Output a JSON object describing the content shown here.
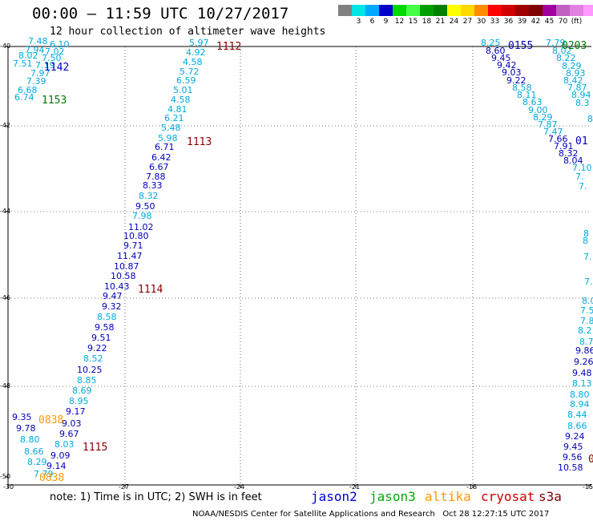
{
  "title": "00:00 – 11:59 UTC 10/27/2017",
  "subtitle": "12 hour collection of altimeter wave heights",
  "colorbar": {
    "colors": [
      "#808080",
      "#00e5e5",
      "#00aaff",
      "#0000cc",
      "#00d800",
      "#44ff44",
      "#00a000",
      "#008000",
      "#ffff00",
      "#ffd800",
      "#ff8c00",
      "#ff0000",
      "#d00000",
      "#a00000",
      "#800000",
      "#a000a0",
      "#c060c0",
      "#e080e0",
      "#ff99ff",
      "#000000"
    ],
    "labels": [
      "",
      "3",
      "6",
      "9",
      "12",
      "15",
      "18",
      "21",
      "24",
      "27",
      "30",
      "33",
      "36",
      "39",
      "42",
      "45",
      "70",
      "(ft)"
    ]
  },
  "axes": {
    "lat_ticks": [
      "-40",
      "-42",
      "-44",
      "-46",
      "-48",
      "-50"
    ],
    "lon_ticks": [
      "-30",
      "-27",
      "-24",
      "-21",
      "-18",
      "-15"
    ]
  },
  "track_colors": {
    "cyan": "#00aadd",
    "blue": "#0000bb",
    "green": "#007700",
    "orange": "#ff9900",
    "darkred": "#8b0000"
  },
  "observations": [
    {
      "v": "7.48",
      "c": "cyan"
    },
    {
      "v": "6.10",
      "c": "cyan"
    },
    {
      "v": "7.94",
      "c": "cyan"
    },
    {
      "v": "7.02",
      "c": "cyan"
    },
    {
      "v": "8.02",
      "c": "cyan"
    },
    {
      "v": "7.50",
      "c": "cyan"
    },
    {
      "v": "7.51",
      "c": "cyan"
    },
    {
      "v": "7.19",
      "c": "cyan"
    },
    {
      "v": "7.97",
      "c": "cyan"
    },
    {
      "v": "7.39",
      "c": "cyan"
    },
    {
      "v": "6.68",
      "c": "cyan"
    },
    {
      "v": "6.74",
      "c": "cyan"
    },
    {
      "v": "5.97",
      "c": "cyan"
    },
    {
      "v": "4.92",
      "c": "cyan"
    },
    {
      "v": "4.58",
      "c": "cyan"
    },
    {
      "v": "5.72",
      "c": "cyan"
    },
    {
      "v": "6.59",
      "c": "cyan"
    },
    {
      "v": "5.01",
      "c": "cyan"
    },
    {
      "v": "4.58",
      "c": "cyan"
    },
    {
      "v": "4.81",
      "c": "cyan"
    },
    {
      "v": "6.21",
      "c": "cyan"
    },
    {
      "v": "5.48",
      "c": "cyan"
    },
    {
      "v": "5.98",
      "c": "cyan"
    },
    {
      "v": "6.71",
      "c": "blue"
    },
    {
      "v": "6.42",
      "c": "blue"
    },
    {
      "v": "6.67",
      "c": "blue"
    },
    {
      "v": "7.88",
      "c": "blue"
    },
    {
      "v": "8.33",
      "c": "blue"
    },
    {
      "v": "8.32",
      "c": "cyan"
    },
    {
      "v": "9.50",
      "c": "blue"
    },
    {
      "v": "7.98",
      "c": "cyan"
    },
    {
      "v": "11.02",
      "c": "blue"
    },
    {
      "v": "10.80",
      "c": "blue"
    },
    {
      "v": "9.71",
      "c": "blue"
    },
    {
      "v": "11.47",
      "c": "blue"
    },
    {
      "v": "10.87",
      "c": "blue"
    },
    {
      "v": "10.58",
      "c": "blue"
    },
    {
      "v": "10.43",
      "c": "blue"
    },
    {
      "v": "9.47",
      "c": "blue"
    },
    {
      "v": "9.32",
      "c": "blue"
    },
    {
      "v": "8.58",
      "c": "cyan"
    },
    {
      "v": "9.58",
      "c": "blue"
    },
    {
      "v": "9.51",
      "c": "blue"
    },
    {
      "v": "9.22",
      "c": "blue"
    },
    {
      "v": "8.52",
      "c": "cyan"
    },
    {
      "v": "10.25",
      "c": "blue"
    },
    {
      "v": "8.85",
      "c": "cyan"
    },
    {
      "v": "8.69",
      "c": "cyan"
    },
    {
      "v": "8.95",
      "c": "cyan"
    },
    {
      "v": "9.17",
      "c": "blue"
    },
    {
      "v": "9.35",
      "c": "blue"
    },
    {
      "v": "9.03",
      "c": "blue"
    },
    {
      "v": "9.78",
      "c": "blue"
    },
    {
      "v": "9.67",
      "c": "blue"
    },
    {
      "v": "8.80",
      "c": "cyan"
    },
    {
      "v": "8.03",
      "c": "cyan"
    },
    {
      "v": "8.66",
      "c": "cyan"
    },
    {
      "v": "9.09",
      "c": "blue"
    },
    {
      "v": "8.29",
      "c": "cyan"
    },
    {
      "v": "9.14",
      "c": "blue"
    },
    {
      "v": "7.79",
      "c": "cyan"
    },
    {
      "v": "8.25",
      "c": "cyan"
    },
    {
      "v": "8.60",
      "c": "blue"
    },
    {
      "v": "9.45",
      "c": "blue"
    },
    {
      "v": "9.42",
      "c": "blue"
    },
    {
      "v": "9.03",
      "c": "blue"
    },
    {
      "v": "9.22",
      "c": "blue"
    },
    {
      "v": "8.58",
      "c": "cyan"
    },
    {
      "v": "8.11",
      "c": "cyan"
    },
    {
      "v": "8.63",
      "c": "cyan"
    },
    {
      "v": "9.00",
      "c": "cyan"
    },
    {
      "v": "8.29",
      "c": "cyan"
    },
    {
      "v": "7.87",
      "c": "cyan"
    },
    {
      "v": "7.47",
      "c": "cyan"
    },
    {
      "v": "7.66",
      "c": "blue"
    },
    {
      "v": "7.91",
      "c": "blue"
    },
    {
      "v": "8.32",
      "c": "blue"
    },
    {
      "v": "8.04",
      "c": "blue"
    },
    {
      "v": "7.79",
      "c": "cyan"
    },
    {
      "v": "8.02",
      "c": "cyan"
    },
    {
      "v": "8.22",
      "c": "cyan"
    },
    {
      "v": "8.29",
      "c": "cyan"
    },
    {
      "v": "8.93",
      "c": "cyan"
    },
    {
      "v": "8.42",
      "c": "cyan"
    },
    {
      "v": "7.87",
      "c": "cyan"
    },
    {
      "v": "8.94",
      "c": "cyan"
    },
    {
      "v": "8.3",
      "c": "cyan"
    },
    {
      "v": "8",
      "c": "cyan"
    },
    {
      "v": "7.10",
      "c": "cyan"
    },
    {
      "v": "7.",
      "c": "cyan"
    },
    {
      "v": "7.",
      "c": "cyan"
    },
    {
      "v": "8",
      "c": "cyan"
    },
    {
      "v": "8",
      "c": "cyan"
    },
    {
      "v": "7.",
      "c": "cyan"
    },
    {
      "v": "7.",
      "c": "cyan"
    },
    {
      "v": "8.0",
      "c": "cyan"
    },
    {
      "v": "7.5",
      "c": "cyan"
    },
    {
      "v": "7.8",
      "c": "cyan"
    },
    {
      "v": "8.2",
      "c": "cyan"
    },
    {
      "v": "8.7",
      "c": "cyan"
    },
    {
      "v": "9.86",
      "c": "blue"
    },
    {
      "v": "9.26",
      "c": "blue"
    },
    {
      "v": "9.48",
      "c": "blue"
    },
    {
      "v": "8.13",
      "c": "cyan"
    },
    {
      "v": "8.80",
      "c": "cyan"
    },
    {
      "v": "8.94",
      "c": "cyan"
    },
    {
      "v": "8.44",
      "c": "cyan"
    },
    {
      "v": "8.66",
      "c": "cyan"
    },
    {
      "v": "9.24",
      "c": "blue"
    },
    {
      "v": "9.45",
      "c": "blue"
    },
    {
      "v": "9.56",
      "c": "blue"
    },
    {
      "v": "10.58",
      "c": "blue"
    }
  ],
  "time_labels": [
    {
      "v": "1112",
      "c": "darkred"
    },
    {
      "v": "1142",
      "c": "blue"
    },
    {
      "v": "1153",
      "c": "green"
    },
    {
      "v": "1113",
      "c": "darkred"
    },
    {
      "v": "1114",
      "c": "darkred"
    },
    {
      "v": "0838",
      "c": "orange"
    },
    {
      "v": "1115",
      "c": "darkred"
    },
    {
      "v": "0838",
      "c": "orange"
    },
    {
      "v": "0155",
      "c": "blue"
    },
    {
      "v": "0203",
      "c": "green"
    },
    {
      "v": "01",
      "c": "blue"
    },
    {
      "v": "0",
      "c": "darkred"
    }
  ],
  "footer": {
    "note": "note: 1) Time is in UTC; 2) SWH is in feet",
    "legend": [
      {
        "name": "jason2",
        "color": "#0000cc"
      },
      {
        "name": "jason3",
        "color": "#00aa00"
      },
      {
        "name": "altika",
        "color": "#ff9900"
      },
      {
        "name": "cryosat",
        "color": "#cc0000"
      },
      {
        "name": "s3a",
        "color": "#800000"
      }
    ],
    "credit": "NOAA/NESDIS Center for Satellite Applications and Research",
    "timestamp": "Oct 28 12:27:15 UTC 2017"
  }
}
